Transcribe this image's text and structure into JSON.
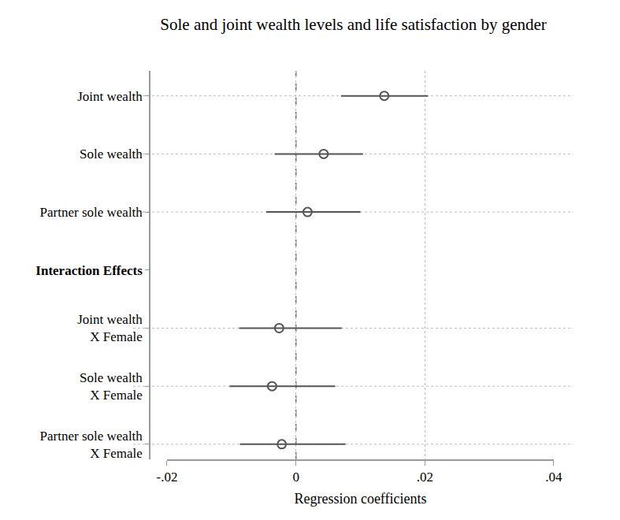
{
  "chart_data": {
    "type": "coefficient_plot",
    "orientation": "horizontal",
    "title": "Sole and joint wealth levels and life satisfaction by gender",
    "x_label": "Regression coefficients",
    "categories": [
      "Joint wealth",
      "Sole wealth",
      "Partner sole wealth",
      "Interaction Effects",
      "Joint wealth\nX Female",
      "Sole wealth\nX Female",
      "Partner sole wealth\nX Female"
    ],
    "values": [
      0.0137,
      0.0043,
      0.0018,
      null,
      -0.0026,
      -0.0037,
      -0.0022
    ],
    "lower": [
      0.007,
      -0.0033,
      -0.0046,
      null,
      -0.0088,
      -0.0103,
      -0.0087
    ],
    "upper": [
      0.0205,
      0.0104,
      0.01,
      null,
      0.0071,
      0.0061,
      0.0077
    ],
    "xlim": [
      -0.02,
      0.04
    ],
    "xticks": [
      {
        "value": -0.02,
        "label": "-.02"
      },
      0,
      {
        "value": 0.02,
        "label": ".02"
      },
      {
        "value": 0.04,
        "label": ".04"
      }
    ],
    "color": "#555555",
    "marker": "hollow-circle",
    "grid": true
  }
}
